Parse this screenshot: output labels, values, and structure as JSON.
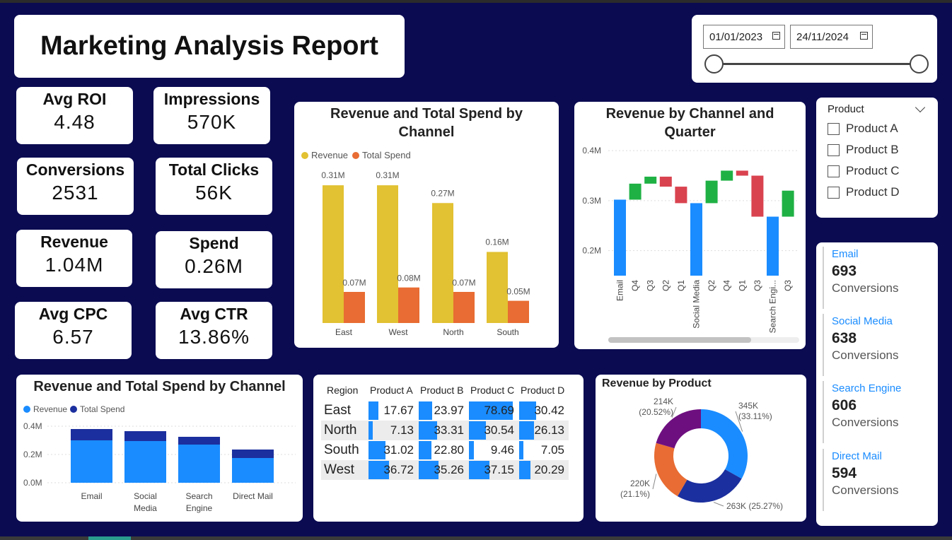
{
  "title": "Marketing Analysis Report",
  "date_range": {
    "start": "01/01/2023",
    "end": "24/11/2024"
  },
  "kpis": [
    {
      "label": "Avg ROI",
      "value": "4.48"
    },
    {
      "label": "Impressions",
      "value": "570K"
    },
    {
      "label": "Conversions",
      "value": "2531"
    },
    {
      "label": "Total Clicks",
      "value": "56K"
    },
    {
      "label": "Revenue",
      "value": "1.04M"
    },
    {
      "label": "Spend",
      "value": "0.26M"
    },
    {
      "label": "Avg CPC",
      "value": "6.57"
    },
    {
      "label": "Avg CTR",
      "value": "13.86%"
    }
  ],
  "product_filter": {
    "header": "Product",
    "options": [
      "Product A",
      "Product B",
      "Product C",
      "Product D"
    ]
  },
  "conversions_by_channel": [
    {
      "channel": "Email",
      "value": "693",
      "label": "Conversions"
    },
    {
      "channel": "Social Media",
      "value": "638",
      "label": "Conversions"
    },
    {
      "channel": "Search Engine",
      "value": "606",
      "label": "Conversions"
    },
    {
      "channel": "Direct Mail",
      "value": "594",
      "label": "Conversions"
    }
  ],
  "colors": {
    "revenue_gold": "#e2c132",
    "spend_orange": "#e86c33",
    "blue": "#1a8cff",
    "navy": "#1c2f9e",
    "up_green": "#1fb144",
    "down_red": "#d9434f",
    "purple": "#6e0f80"
  },
  "chart_data": [
    {
      "type": "bar",
      "title": "Revenue and Total Spend by Channel",
      "categories": [
        "East",
        "West",
        "North",
        "South"
      ],
      "series": [
        {
          "name": "Revenue",
          "values": [
            0.31,
            0.31,
            0.27,
            0.16
          ],
          "labels": [
            "0.31M",
            "0.31M",
            "0.27M",
            "0.16M"
          ]
        },
        {
          "name": "Total Spend",
          "values": [
            0.07,
            0.08,
            0.07,
            0.05
          ],
          "labels": [
            "0.07M",
            "0.08M",
            "0.07M",
            "0.05M"
          ]
        }
      ],
      "legend": "top-left",
      "unit": "M"
    },
    {
      "type": "bar",
      "subtype": "waterfall",
      "title": "Revenue by Channel and Quarter",
      "ylim": [
        0.15,
        0.42
      ],
      "yticks": [
        "0.2M",
        "0.3M",
        "0.4M"
      ],
      "ytick_values": [
        0.2,
        0.3,
        0.4
      ],
      "categories": [
        "Email",
        "Q4",
        "Q3",
        "Q2",
        "Q1",
        "Social Media",
        "Q2",
        "Q4",
        "Q1",
        "Q3",
        "Search Engi...",
        "Q3"
      ],
      "steps": [
        {
          "kind": "total",
          "start": 0.15,
          "end": 0.302
        },
        {
          "kind": "delta",
          "start": 0.302,
          "end": 0.334
        },
        {
          "kind": "delta",
          "start": 0.334,
          "end": 0.348
        },
        {
          "kind": "delta",
          "start": 0.348,
          "end": 0.328
        },
        {
          "kind": "delta",
          "start": 0.328,
          "end": 0.295
        },
        {
          "kind": "total",
          "start": 0.15,
          "end": 0.295
        },
        {
          "kind": "delta",
          "start": 0.295,
          "end": 0.34
        },
        {
          "kind": "delta",
          "start": 0.34,
          "end": 0.36
        },
        {
          "kind": "delta",
          "start": 0.36,
          "end": 0.35
        },
        {
          "kind": "delta",
          "start": 0.35,
          "end": 0.268
        },
        {
          "kind": "total",
          "start": 0.15,
          "end": 0.268
        },
        {
          "kind": "delta",
          "start": 0.268,
          "end": 0.32
        }
      ]
    },
    {
      "type": "bar",
      "subtype": "stacked",
      "title": "Revenue and Total Spend by Channel",
      "categories": [
        "Email",
        "Social Media",
        "Search Engine",
        "Direct Mail"
      ],
      "series": [
        {
          "name": "Revenue",
          "values": [
            0.3,
            0.295,
            0.27,
            0.175
          ]
        },
        {
          "name": "Total Spend",
          "values": [
            0.08,
            0.07,
            0.055,
            0.06
          ]
        }
      ],
      "ylim": [
        0,
        0.4
      ],
      "yticks": [
        "0.0M",
        "0.2M",
        "0.4M"
      ],
      "legend": "top-left"
    },
    {
      "type": "table",
      "columns": [
        "Region",
        "Product A",
        "Product B",
        "Product C",
        "Product D"
      ],
      "rows": [
        {
          "region": "East",
          "values": [
            "17.67",
            "23.97",
            "78.69",
            "30.42"
          ]
        },
        {
          "region": "North",
          "values": [
            "7.13",
            "33.31",
            "30.54",
            "26.13"
          ]
        },
        {
          "region": "South",
          "values": [
            "31.02",
            "22.80",
            "9.46",
            "7.05"
          ]
        },
        {
          "region": "West",
          "values": [
            "36.72",
            "35.26",
            "37.15",
            "20.29"
          ]
        }
      ],
      "max_value": 78.69
    },
    {
      "type": "pie",
      "subtype": "donut",
      "title": "Revenue by Product",
      "slices": [
        {
          "label": "345K",
          "pct": "(33.11%)",
          "value": 345,
          "color": "#1a8cff"
        },
        {
          "label": "263K",
          "pct": "(25.27%)",
          "value": 263,
          "color": "#1c2f9e"
        },
        {
          "label": "220K",
          "pct": "(21.1%)",
          "value": 220,
          "color": "#e86c33"
        },
        {
          "label": "214K",
          "pct": "(20.52%)",
          "value": 214,
          "color": "#6e0f80"
        }
      ]
    }
  ]
}
